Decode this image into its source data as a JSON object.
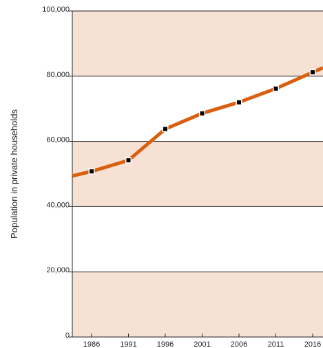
{
  "chart_data": {
    "type": "line",
    "title": "",
    "xlabel": "",
    "ylabel": "Population in private households",
    "x": [
      1986,
      1991,
      1996,
      2001,
      2006,
      2011,
      2016
    ],
    "x_tick_labels": [
      "1986",
      "1991",
      "1996",
      "2001",
      "2006",
      "2011",
      "2016"
    ],
    "series": [
      {
        "values": [
          50800,
          54200,
          63800,
          68600,
          72000,
          76200,
          81200
        ],
        "color": "#d95f0e",
        "marker_color": "#000000"
      }
    ],
    "series_start_value": 49400,
    "ylim": [
      0,
      100000
    ],
    "y_ticks": [
      0,
      20000,
      40000,
      60000,
      80000,
      100000
    ],
    "y_tick_labels": [
      "0",
      "20,000",
      "40,000",
      "60,000",
      "80,000",
      "100,000"
    ],
    "band_color": "#f7e1d5",
    "gridlines": "horizontal",
    "legend": "none"
  }
}
